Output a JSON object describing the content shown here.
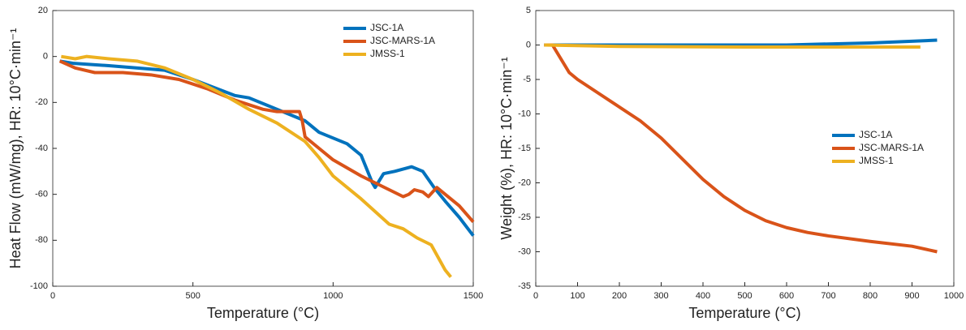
{
  "chart_data": [
    {
      "type": "line",
      "xlabel": "Temperature (°C)",
      "ylabel": "Heat Flow (mW/mg), HR: 10°C·min⁻¹",
      "xlim": [
        0,
        1500
      ],
      "xticks": [
        0,
        500,
        1000,
        1500
      ],
      "ylim": [
        -100,
        20
      ],
      "yticks": [
        -100,
        -80,
        -60,
        -40,
        -20,
        0,
        20
      ],
      "legend": "upper right",
      "series": [
        {
          "name": "JSC-1A",
          "color": "#0072bd",
          "x": [
            25,
            75,
            200,
            400,
            500,
            650,
            700,
            800,
            900,
            950,
            1050,
            1100,
            1140,
            1150,
            1180,
            1220,
            1280,
            1320,
            1360,
            1400,
            1450,
            1500
          ],
          "values": [
            -2,
            -3,
            -4,
            -6,
            -10,
            -17,
            -18,
            -23,
            -28,
            -33,
            -38,
            -43,
            -55,
            -57,
            -51,
            -50,
            -48,
            -50,
            -57,
            -63,
            -70,
            -78
          ]
        },
        {
          "name": "JSC-MARS-1A",
          "color": "#d95319",
          "x": [
            25,
            80,
            150,
            250,
            350,
            450,
            550,
            650,
            700,
            750,
            800,
            880,
            890,
            900,
            950,
            1000,
            1100,
            1200,
            1250,
            1270,
            1290,
            1320,
            1340,
            1370,
            1400,
            1450,
            1500
          ],
          "values": [
            -2,
            -5,
            -7,
            -7,
            -8,
            -10,
            -14,
            -19,
            -21,
            -23,
            -24,
            -24,
            -28,
            -35,
            -40,
            -45,
            -52,
            -58,
            -61,
            -60,
            -58,
            -59,
            -61,
            -57,
            -60,
            -65,
            -72
          ]
        },
        {
          "name": "JMSS-1",
          "color": "#edb120",
          "x": [
            30,
            80,
            120,
            200,
            300,
            400,
            500,
            600,
            700,
            800,
            900,
            950,
            1000,
            1100,
            1200,
            1250,
            1300,
            1350,
            1400,
            1420
          ],
          "values": [
            0,
            -1,
            0,
            -1,
            -2,
            -5,
            -10,
            -16,
            -23,
            -29,
            -37,
            -44,
            -52,
            -62,
            -73,
            -75,
            -79,
            -82,
            -93,
            -96
          ]
        }
      ]
    },
    {
      "type": "line",
      "xlabel": "Temperature (°C)",
      "ylabel": "Weight (%), HR: 10°C·min⁻¹",
      "xlim": [
        0,
        1000
      ],
      "xticks": [
        0,
        100,
        200,
        300,
        400,
        500,
        600,
        700,
        800,
        900,
        1000
      ],
      "ylim": [
        -35,
        5
      ],
      "yticks": [
        -35,
        -30,
        -25,
        -20,
        -15,
        -10,
        -5,
        0,
        5
      ],
      "legend": "center right",
      "series": [
        {
          "name": "JSC-1A",
          "color": "#0072bd",
          "x": [
            20,
            200,
            600,
            800,
            960
          ],
          "values": [
            0,
            0,
            0,
            0.3,
            0.7
          ]
        },
        {
          "name": "JSC-MARS-1A",
          "color": "#d95319",
          "x": [
            20,
            40,
            60,
            80,
            100,
            150,
            200,
            250,
            300,
            350,
            400,
            450,
            500,
            550,
            600,
            650,
            700,
            800,
            900,
            960
          ],
          "values": [
            0,
            0,
            -2,
            -4,
            -5,
            -7,
            -9,
            -11,
            -13.5,
            -16.5,
            -19.5,
            -22,
            -24,
            -25.5,
            -26.5,
            -27.2,
            -27.7,
            -28.5,
            -29.2,
            -30
          ]
        },
        {
          "name": "JMSS-1",
          "color": "#edb120",
          "x": [
            20,
            200,
            500,
            700,
            920
          ],
          "values": [
            0,
            -0.2,
            -0.3,
            -0.3,
            -0.3
          ]
        }
      ]
    }
  ]
}
